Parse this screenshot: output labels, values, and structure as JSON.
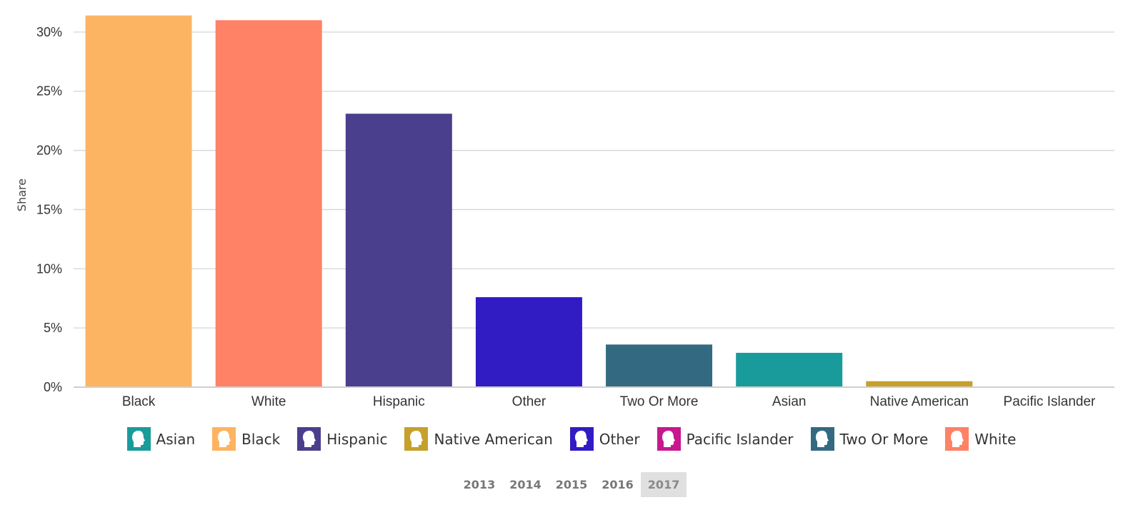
{
  "chart_data": {
    "type": "bar",
    "ylabel": "Share",
    "ylim": [
      0,
      31.5
    ],
    "yticks": [
      "0%",
      "5%",
      "10%",
      "15%",
      "20%",
      "25%",
      "30%"
    ],
    "ytick_values": [
      0,
      5,
      10,
      15,
      20,
      25,
      30
    ],
    "grid": true,
    "categories": [
      "Black",
      "White",
      "Hispanic",
      "Other",
      "Two Or More",
      "Asian",
      "Native American",
      "Pacific Islander"
    ],
    "values": [
      31.4,
      31.0,
      23.1,
      7.6,
      3.6,
      2.9,
      0.5,
      0.0
    ],
    "colors": [
      "#FDB462",
      "#FF8166",
      "#493F8C",
      "#311CC4",
      "#336A81",
      "#1A9B9B",
      "#C6A02A",
      "#C8178F"
    ],
    "legend_placement": "bottom",
    "legend": [
      {
        "label": "Asian",
        "color": "#1A9B9B"
      },
      {
        "label": "Black",
        "color": "#FDB462"
      },
      {
        "label": "Hispanic",
        "color": "#493F8C"
      },
      {
        "label": "Native American",
        "color": "#C6A02A"
      },
      {
        "label": "Other",
        "color": "#311CC4"
      },
      {
        "label": "Pacific Islander",
        "color": "#C8178F"
      },
      {
        "label": "Two Or More",
        "color": "#336A81"
      },
      {
        "label": "White",
        "color": "#FF8166"
      }
    ]
  },
  "year_selector": {
    "years": [
      "2013",
      "2014",
      "2015",
      "2016",
      "2017"
    ],
    "selected": "2017"
  },
  "icons": {
    "legend_icon": "person-head-icon"
  }
}
